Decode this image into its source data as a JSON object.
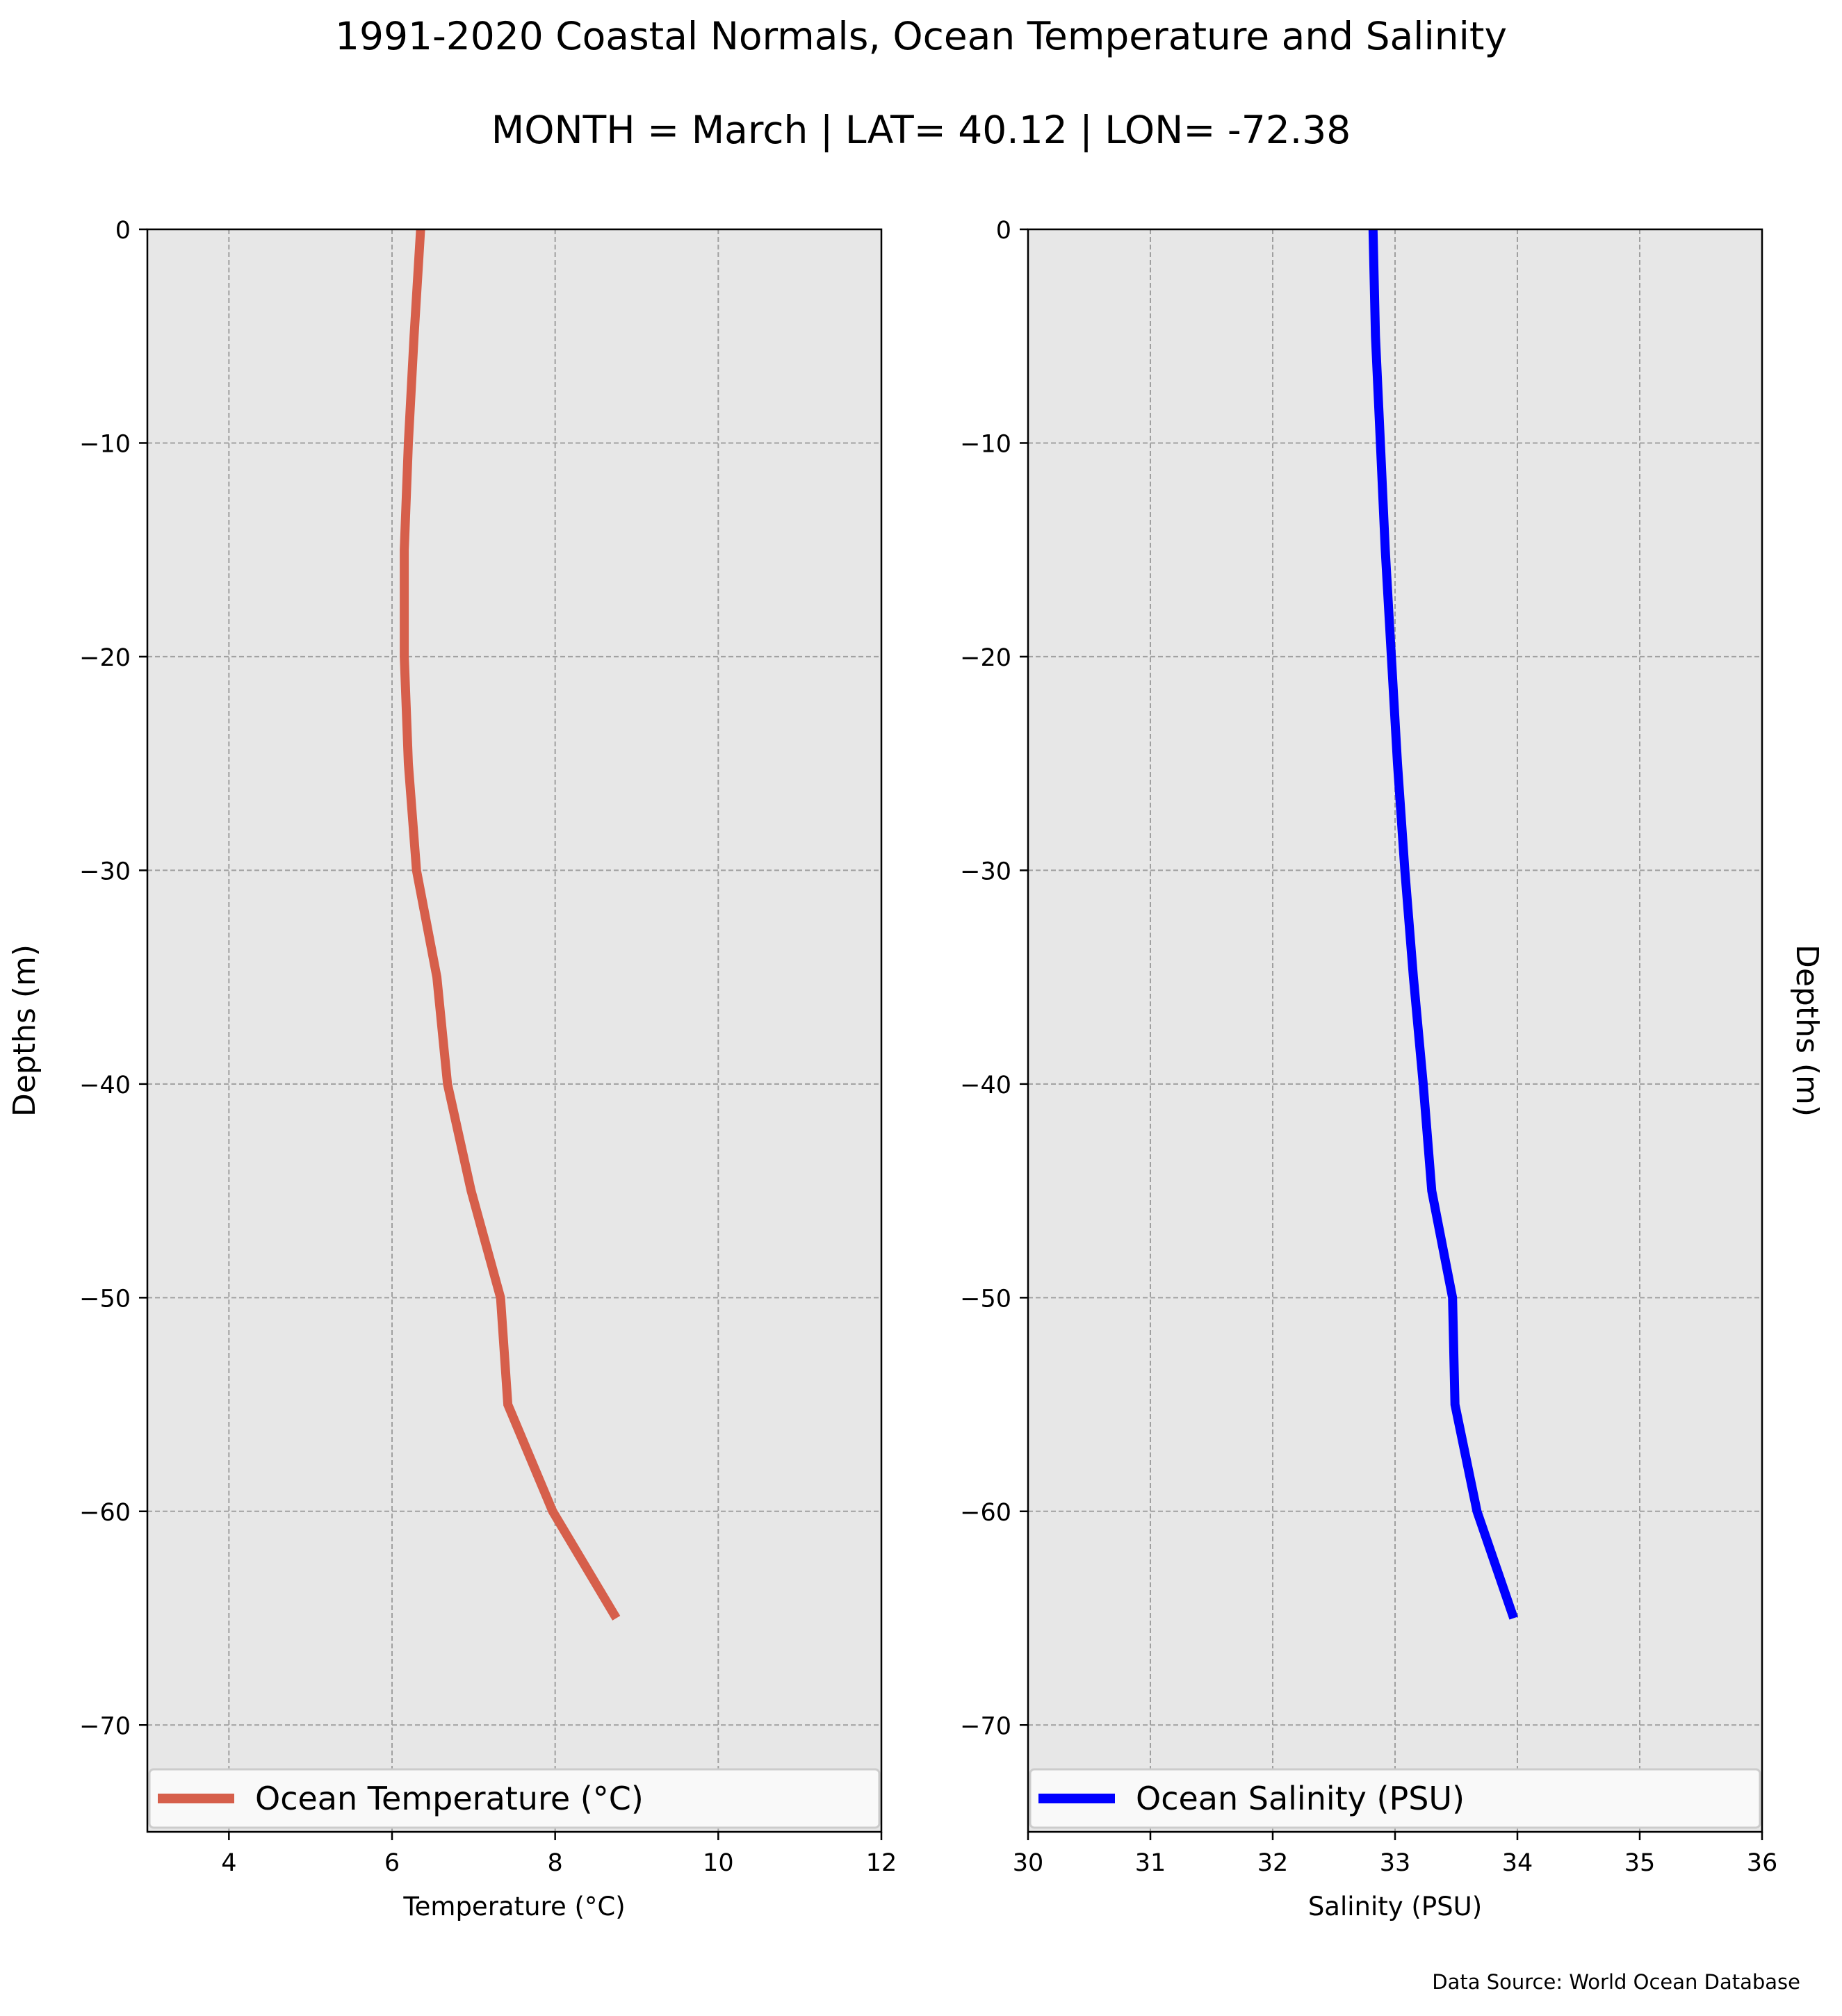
{
  "figure": {
    "title": "1991-2020 Coastal Normals, Ocean Temperature and Salinity",
    "subtitle": "MONTH = March | LAT= 40.12 | LON= -72.38",
    "source": "Data Source: World Ocean Database"
  },
  "chart_data": [
    {
      "type": "line",
      "title": "",
      "xlabel": "Temperature (°C)",
      "ylabel": "Depths (m)",
      "xlim": [
        3,
        12
      ],
      "ylim": [
        -75,
        0
      ],
      "xticks": [
        "4",
        "6",
        "8",
        "10",
        "12"
      ],
      "yticks": [
        "0",
        "−10",
        "−20",
        "−30",
        "−40",
        "−50",
        "−60",
        "−70"
      ],
      "grid": true,
      "legend_position": "bottom",
      "series": [
        {
          "name": "Ocean Temperature (°C)",
          "color": "#d65f4b",
          "x": [
            6.35,
            6.27,
            6.2,
            6.15,
            6.15,
            6.2,
            6.3,
            6.55,
            6.68,
            6.97,
            7.33,
            7.42,
            7.97,
            8.75
          ],
          "y": [
            0,
            -5,
            -10,
            -15,
            -20,
            -25,
            -30,
            -35,
            -40,
            -45,
            -50,
            -55,
            -60,
            -65
          ]
        }
      ]
    },
    {
      "type": "line",
      "title": "",
      "xlabel": "Salinity (PSU)",
      "ylabel": "Depths (m)",
      "xlim": [
        30,
        36
      ],
      "ylim": [
        -75,
        0
      ],
      "xticks": [
        "30",
        "31",
        "32",
        "33",
        "34",
        "35",
        "36"
      ],
      "yticks": [
        "0",
        "−10",
        "−20",
        "−30",
        "−40",
        "−50",
        "−60",
        "−70"
      ],
      "grid": true,
      "legend_position": "bottom",
      "series": [
        {
          "name": "Ocean Salinity (PSU)",
          "color": "#0000ff",
          "x": [
            32.82,
            32.84,
            32.88,
            32.92,
            32.97,
            33.02,
            33.08,
            33.15,
            33.23,
            33.3,
            33.47,
            33.49,
            33.67,
            33.97
          ],
          "y": [
            0,
            -5,
            -10,
            -15,
            -20,
            -25,
            -30,
            -35,
            -40,
            -45,
            -50,
            -55,
            -60,
            -65
          ]
        }
      ]
    }
  ]
}
